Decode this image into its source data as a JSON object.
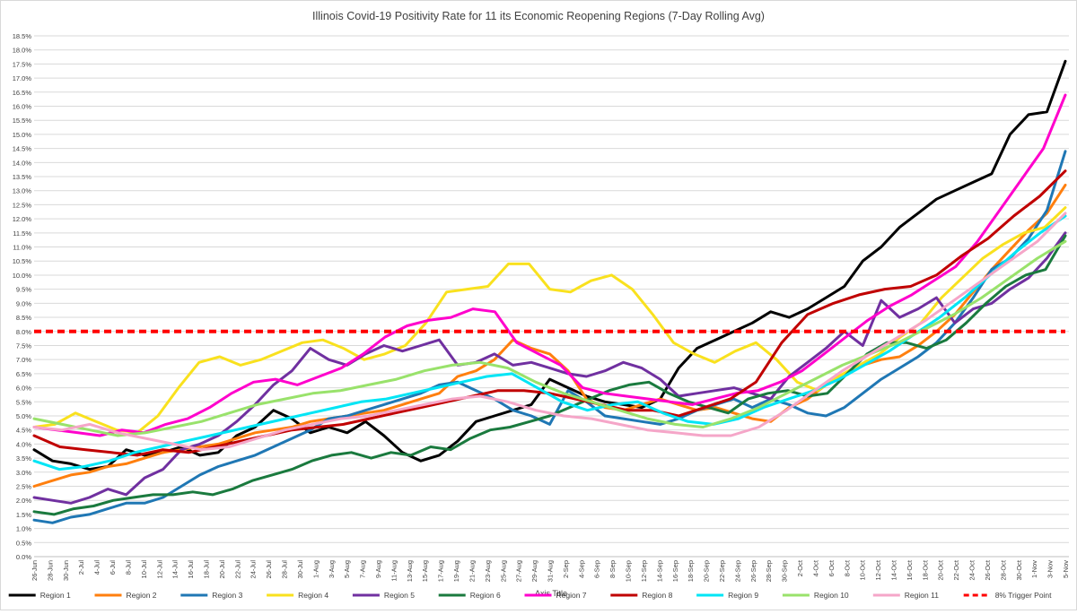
{
  "chart_data": {
    "type": "line",
    "title": "Illinois Covid-19 Positivity Rate for 11 its Economic Reopening Regions (7-Day Rolling Avg)",
    "xlabel": "Axis Title",
    "ylabel": "",
    "ylim": [
      0,
      18.5
    ],
    "y_ticks": [
      0,
      0.5,
      1,
      1.5,
      2,
      2.5,
      3,
      3.5,
      4,
      4.5,
      5,
      5.5,
      6,
      6.5,
      7,
      7.5,
      8,
      8.5,
      9,
      9.5,
      10,
      10.5,
      11,
      11.5,
      12,
      12.5,
      13,
      13.5,
      14,
      14.5,
      15,
      15.5,
      16,
      16.5,
      17,
      17.5,
      18,
      18.5
    ],
    "y_tick_format": "percent_1dp",
    "grid": true,
    "legend_position": "bottom",
    "x_ticks": [
      "26-Jun",
      "28-Jun",
      "30-Jun",
      "2-Jul",
      "4-Jul",
      "6-Jul",
      "8-Jul",
      "10-Jul",
      "12-Jul",
      "14-Jul",
      "16-Jul",
      "18-Jul",
      "20-Jul",
      "22-Jul",
      "24-Jul",
      "26-Jul",
      "28-Jul",
      "30-Jul",
      "1-Aug",
      "3-Aug",
      "5-Aug",
      "7-Aug",
      "9-Aug",
      "11-Aug",
      "13-Aug",
      "15-Aug",
      "17-Aug",
      "19-Aug",
      "21-Aug",
      "23-Aug",
      "25-Aug",
      "27-Aug",
      "29-Aug",
      "31-Aug",
      "2-Sep",
      "4-Sep",
      "6-Sep",
      "8-Sep",
      "10-Sep",
      "12-Sep",
      "14-Sep",
      "16-Sep",
      "18-Sep",
      "20-Sep",
      "22-Sep",
      "24-Sep",
      "26-Sep",
      "28-Sep",
      "30-Sep",
      "2-Oct",
      "4-Oct",
      "6-Oct",
      "8-Oct",
      "10-Oct",
      "12-Oct",
      "14-Oct",
      "16-Oct",
      "18-Oct",
      "20-Oct",
      "22-Oct",
      "24-Oct",
      "26-Oct",
      "28-Oct",
      "30-Oct",
      "1-Nov",
      "3-Nov",
      "5-Nov"
    ],
    "x_days_from_first_tick": [
      0,
      4,
      10,
      14,
      20,
      24,
      28,
      34,
      38,
      42,
      46,
      50,
      54,
      58,
      62,
      66,
      70,
      74,
      78,
      82,
      86,
      90,
      94,
      98,
      102,
      106,
      110,
      114,
      118,
      122,
      126,
      130,
      132
    ],
    "series": [
      {
        "name": "Region 1",
        "color": "#000000",
        "values": [
          3.8,
          3.4,
          3.3,
          3.1,
          3.2,
          3.8,
          3.6,
          3.7,
          3.9,
          3.6,
          3.7,
          4.3,
          4.6,
          5.2,
          4.9,
          4.4,
          4.6,
          4.4,
          4.8,
          4.3,
          3.7,
          3.4,
          3.6,
          4.1,
          4.8,
          5.0,
          5.2,
          5.4,
          6.3,
          6.0,
          5.7,
          5.5,
          5.4,
          5.3,
          5.6,
          6.7,
          7.4,
          7.7,
          8.0,
          8.3,
          8.7,
          8.5,
          8.8,
          9.2,
          9.6,
          10.5,
          11.0,
          11.7,
          12.2,
          12.7,
          13.0,
          13.3,
          13.6,
          15.0,
          15.7,
          15.8,
          17.6
        ]
      },
      {
        "name": "Region 2",
        "color": "#ff7f0e",
        "values": [
          2.5,
          2.7,
          2.9,
          3.0,
          3.2,
          3.3,
          3.5,
          3.7,
          3.8,
          3.9,
          4.0,
          4.2,
          4.4,
          4.5,
          4.6,
          4.8,
          4.9,
          5.0,
          5.1,
          5.2,
          5.4,
          5.6,
          5.8,
          6.4,
          6.6,
          7.0,
          7.7,
          7.4,
          7.2,
          6.6,
          5.6,
          5.3,
          5.2,
          5.4,
          5.6,
          5.4,
          5.2,
          5.3,
          5.1,
          4.9,
          4.8,
          5.3,
          5.6,
          6.1,
          6.5,
          6.8,
          7.0,
          7.1,
          7.5,
          8.0,
          8.6,
          9.4,
          10.2,
          10.9,
          11.6,
          12.2,
          13.2
        ]
      },
      {
        "name": "Region 3",
        "color": "#1f77b4",
        "values": [
          1.3,
          1.2,
          1.4,
          1.5,
          1.7,
          1.9,
          1.9,
          2.1,
          2.5,
          2.9,
          3.2,
          3.4,
          3.6,
          3.9,
          4.2,
          4.5,
          4.9,
          5.0,
          5.2,
          5.4,
          5.6,
          5.8,
          6.1,
          6.2,
          5.9,
          5.6,
          5.2,
          5.0,
          4.7,
          5.9,
          5.5,
          5.0,
          4.9,
          4.8,
          4.7,
          4.9,
          5.2,
          5.4,
          5.6,
          5.3,
          5.6,
          5.4,
          5.1,
          5.0,
          5.3,
          5.8,
          6.3,
          6.7,
          7.1,
          7.6,
          8.3,
          9.2,
          10.2,
          10.6,
          11.3,
          12.3,
          14.4
        ]
      },
      {
        "name": "Region 4",
        "color": "#f9e11e",
        "values": [
          4.6,
          4.7,
          5.1,
          4.8,
          4.5,
          4.4,
          5.0,
          6.0,
          6.9,
          7.1,
          6.8,
          7.0,
          7.3,
          7.6,
          7.7,
          7.4,
          7.0,
          7.2,
          7.5,
          8.3,
          9.4,
          9.5,
          9.6,
          10.4,
          10.4,
          9.5,
          9.4,
          9.8,
          10.0,
          9.5,
          8.6,
          7.6,
          7.2,
          6.9,
          7.3,
          7.6,
          7.0,
          6.2,
          5.9,
          6.4,
          6.8,
          7.2,
          7.8,
          8.3,
          9.2,
          9.9,
          10.6,
          11.1,
          11.5,
          11.7,
          12.4
        ]
      },
      {
        "name": "Region 5",
        "color": "#7030a0",
        "values": [
          2.1,
          2.0,
          1.9,
          2.1,
          2.4,
          2.2,
          2.8,
          3.1,
          3.8,
          4.0,
          4.3,
          4.8,
          5.4,
          6.1,
          6.6,
          7.4,
          7.0,
          6.8,
          7.2,
          7.5,
          7.3,
          7.5,
          7.7,
          6.8,
          6.9,
          7.2,
          6.8,
          6.9,
          6.7,
          6.5,
          6.4,
          6.6,
          6.9,
          6.7,
          6.3,
          5.7,
          5.8,
          5.9,
          6.0,
          5.8,
          5.6,
          6.4,
          6.9,
          7.4,
          8.0,
          7.5,
          9.1,
          8.5,
          8.8,
          9.2,
          8.3,
          8.8,
          9.0,
          9.5,
          9.9,
          10.6,
          11.5
        ]
      },
      {
        "name": "Region 6",
        "color": "#1a7a3e",
        "values": [
          1.6,
          1.5,
          1.7,
          1.8,
          2.0,
          2.1,
          2.2,
          2.2,
          2.3,
          2.2,
          2.4,
          2.7,
          2.9,
          3.1,
          3.4,
          3.6,
          3.7,
          3.5,
          3.7,
          3.6,
          3.9,
          3.8,
          4.2,
          4.5,
          4.6,
          4.8,
          5.0,
          5.3,
          5.6,
          5.9,
          6.1,
          6.2,
          5.8,
          5.5,
          5.3,
          5.1,
          5.6,
          5.8,
          5.9,
          5.7,
          5.8,
          6.5,
          7.2,
          7.6,
          7.6,
          7.4,
          7.7,
          8.3,
          9.0,
          9.6,
          10.0,
          10.2,
          11.4
        ]
      },
      {
        "name": "Region 7",
        "color": "#ff00cc",
        "values": [
          4.6,
          4.5,
          4.4,
          4.3,
          4.5,
          4.4,
          4.7,
          4.9,
          5.3,
          5.8,
          6.2,
          6.3,
          6.1,
          6.4,
          6.7,
          7.2,
          7.8,
          8.2,
          8.4,
          8.5,
          8.8,
          8.7,
          7.6,
          7.2,
          6.8,
          6.0,
          5.8,
          5.7,
          5.6,
          5.5,
          5.4,
          5.6,
          5.8,
          5.9,
          6.2,
          6.6,
          7.2,
          7.8,
          8.4,
          8.9,
          9.3,
          9.8,
          10.3,
          11.2,
          12.3,
          13.4,
          14.5,
          16.4
        ]
      },
      {
        "name": "Region 8",
        "color": "#c00000",
        "values": [
          4.3,
          3.9,
          3.8,
          3.7,
          3.6,
          3.8,
          3.7,
          3.9,
          4.1,
          4.3,
          4.5,
          4.6,
          4.7,
          4.9,
          5.1,
          5.3,
          5.5,
          5.7,
          5.9,
          5.9,
          5.8,
          5.6,
          5.4,
          5.2,
          5.2,
          5.0,
          5.3,
          5.6,
          6.2,
          7.6,
          8.6,
          9.0,
          9.3,
          9.5,
          9.6,
          10.0,
          10.7,
          11.3,
          12.1,
          12.8,
          13.7
        ]
      },
      {
        "name": "Region 9",
        "color": "#00e5f5",
        "values": [
          3.4,
          3.1,
          3.2,
          3.4,
          3.7,
          3.9,
          4.1,
          4.3,
          4.5,
          4.7,
          4.9,
          5.1,
          5.3,
          5.5,
          5.6,
          5.8,
          6.0,
          6.2,
          6.4,
          6.5,
          6.0,
          5.5,
          5.2,
          5.4,
          5.5,
          5.1,
          4.8,
          4.7,
          4.9,
          5.3,
          5.6,
          5.9,
          6.3,
          6.8,
          7.3,
          7.9,
          8.5,
          9.2,
          10.0,
          10.8,
          11.5,
          12.1
        ]
      },
      {
        "name": "Region 10",
        "color": "#99e26b",
        "values": [
          4.9,
          4.7,
          4.5,
          4.3,
          4.4,
          4.6,
          4.8,
          5.1,
          5.4,
          5.6,
          5.8,
          5.9,
          6.1,
          6.3,
          6.6,
          6.8,
          6.9,
          6.7,
          6.2,
          5.8,
          5.5,
          5.2,
          4.9,
          4.7,
          4.6,
          4.9,
          5.3,
          5.8,
          6.3,
          6.8,
          7.2,
          7.6,
          8.1,
          8.6,
          9.2,
          9.9,
          10.6,
          11.2
        ]
      },
      {
        "name": "Region 11",
        "color": "#f5a6c8",
        "values": [
          4.6,
          4.5,
          4.7,
          4.4,
          4.2,
          4.0,
          3.8,
          3.9,
          4.2,
          4.5,
          4.7,
          4.9,
          5.0,
          5.2,
          5.4,
          5.6,
          5.7,
          5.5,
          5.2,
          5.0,
          4.9,
          4.7,
          4.5,
          4.4,
          4.3,
          4.3,
          4.6,
          5.2,
          5.9,
          6.6,
          7.2,
          7.8,
          8.4,
          9.1,
          9.8,
          10.5,
          11.2,
          12.2
        ]
      }
    ],
    "reference_line": {
      "name": "8% Trigger Point",
      "value": 8.0,
      "color": "#ff0000"
    }
  }
}
